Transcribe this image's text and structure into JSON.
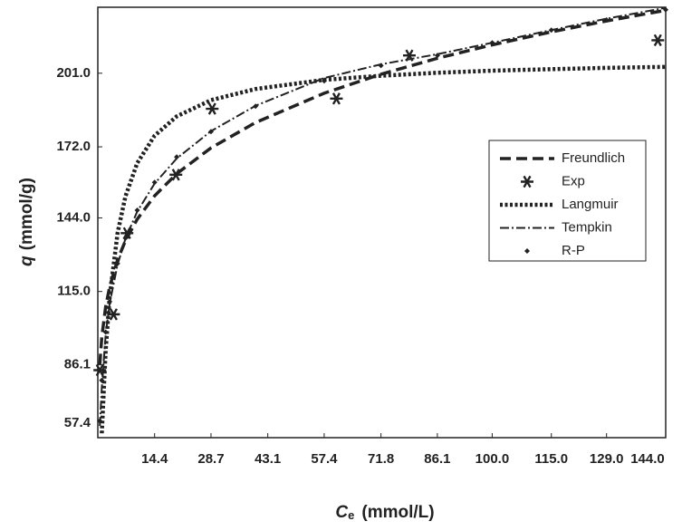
{
  "chart_data": {
    "type": "line",
    "x_label": {
      "symbol": "C",
      "subscript": "e",
      "unit": "(mmol/L)"
    },
    "y_label": {
      "symbol": "q",
      "unit": "(mmol/g)"
    },
    "xlim": [
      0,
      144
    ],
    "ylim": [
      57.4,
      227
    ],
    "xticks": [
      14.4,
      28.7,
      43.1,
      57.4,
      71.8,
      86.1,
      {
        "value": 100,
        "label": "100.0"
      },
      {
        "value": 115,
        "label": "115.0"
      },
      {
        "value": 129,
        "label": "129.0"
      },
      {
        "value": 144,
        "label": "144.0"
      }
    ],
    "yticks": [
      57.4,
      86.1,
      {
        "value": 115,
        "label": "115.0"
      },
      {
        "value": 144,
        "label": "144.0"
      },
      {
        "value": 172,
        "label": "172.0"
      },
      {
        "value": 201,
        "label": "201.0"
      }
    ],
    "legend": "right",
    "series": [
      {
        "name": "Freundlich",
        "color": "#222222",
        "line_style": "dashed",
        "x": [
          0.5,
          1,
          2,
          3,
          5,
          7,
          10,
          14.4,
          20,
          28.7,
          40,
          57.4,
          71.8,
          86.1,
          100,
          115,
          129,
          144
        ],
        "values": [
          86.2,
          97,
          109.1,
          116.9,
          127.5,
          135,
          143.5,
          152.7,
          161.4,
          171.6,
          181.6,
          193.1,
          200.6,
          206.9,
          212.2,
          217.3,
          221.6,
          225.8
        ]
      },
      {
        "name": "Exp",
        "color": "#222222",
        "marker": "star",
        "x": [
          0.5,
          4,
          7.4,
          19.8,
          29,
          60.5,
          79,
          142
        ],
        "values": [
          84,
          106,
          138,
          161,
          187,
          191,
          208,
          214
        ]
      },
      {
        "name": "Langmuir",
        "color": "#222222",
        "line_style": "dotted",
        "x": [
          0.5,
          1,
          2,
          3,
          5,
          7,
          10,
          14.4,
          20,
          28.7,
          40,
          57.4,
          71.8,
          86.1,
          100,
          115,
          129,
          144
        ],
        "values": [
          null,
          59.1,
          92,
          112.9,
          138,
          152.5,
          165.6,
          176.4,
          184,
          190.4,
          194.8,
          198.4,
          200,
          201.2,
          202,
          202.6,
          203.1,
          203.5
        ]
      },
      {
        "name": "Tempkin",
        "color": "#222222",
        "line_style": "dash-dot",
        "x": [
          0.5,
          1,
          2,
          3,
          5,
          7,
          10,
          14.4,
          20,
          28.7,
          40,
          57.4,
          71.8,
          86.1,
          100,
          115,
          129,
          144
        ],
        "values": [
          62,
          77.2,
          98.1,
          110.3,
          125.6,
          135.8,
          146.5,
          157.5,
          167.4,
          178.2,
          188.2,
          199.1,
          204.5,
          208.5,
          213,
          218,
          222.5,
          226.8
        ]
      },
      {
        "name": "R-P",
        "color": "#222222",
        "marker": "diamond",
        "x": [
          0.5,
          1,
          2,
          3,
          5,
          7,
          10,
          14.4,
          20,
          28.7,
          40,
          57.4,
          71.8,
          86.1,
          100,
          115,
          129,
          144
        ],
        "values": [
          64,
          80,
          99,
          111,
          126,
          136,
          147,
          158,
          168,
          178,
          188,
          198,
          204,
          208,
          213,
          218,
          222,
          226
        ]
      }
    ]
  }
}
